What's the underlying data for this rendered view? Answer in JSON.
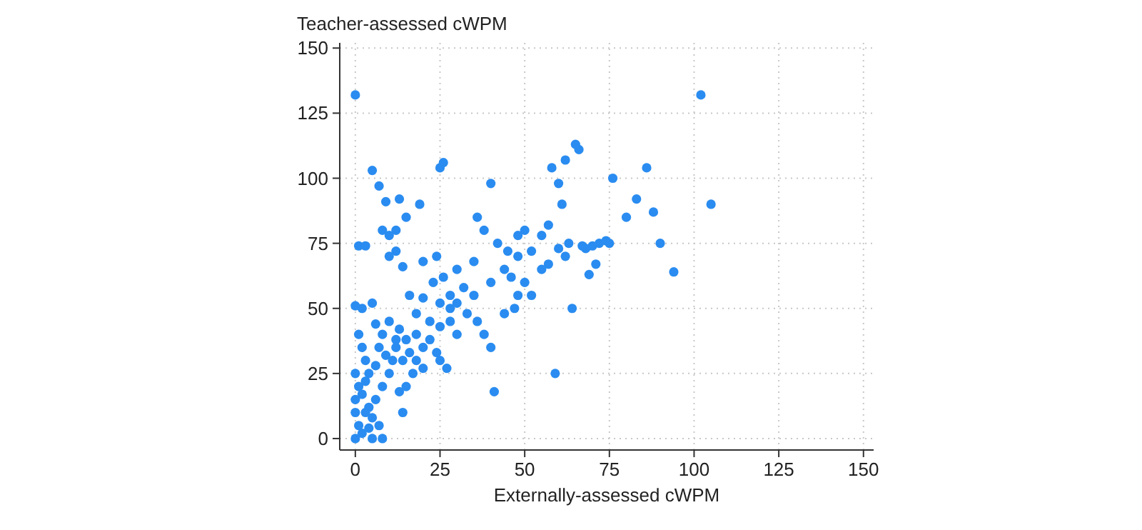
{
  "chart_data": {
    "type": "scatter",
    "xlabel": "Externally-assessed cWPM",
    "ylabel": "Teacher-assessed cWPM",
    "xlim": [
      -4.6,
      153
    ],
    "ylim": [
      -4.4,
      152
    ],
    "xticks": [
      0,
      25,
      50,
      75,
      100,
      125,
      150
    ],
    "yticks": [
      0,
      25,
      50,
      75,
      100,
      125,
      150
    ],
    "grid": true,
    "marker": "circle",
    "series": [
      {
        "color": "#2a8cf0",
        "x": [
          0,
          102,
          105,
          94,
          90,
          88,
          86,
          83,
          80,
          76,
          72,
          70,
          68,
          66,
          65,
          62,
          60,
          61,
          58,
          57,
          55,
          60,
          62,
          64,
          59,
          41,
          40,
          38,
          36,
          42,
          45,
          48,
          50,
          52,
          50,
          52,
          48,
          47,
          44,
          40,
          35,
          30,
          28,
          26,
          25,
          26,
          24,
          20,
          19,
          15,
          13,
          12,
          10,
          8,
          9,
          7,
          5,
          1,
          3,
          12,
          14,
          10,
          16,
          20,
          18,
          23,
          30,
          33,
          36,
          38,
          40,
          30,
          28,
          25,
          22,
          20,
          18,
          17,
          15,
          13,
          14,
          8,
          4,
          3,
          2,
          1,
          0,
          2,
          5,
          6,
          8,
          10,
          12,
          14,
          10,
          8,
          6,
          3,
          1,
          0,
          2,
          4,
          5,
          1,
          0,
          3,
          6,
          9,
          12,
          15,
          18,
          22,
          25,
          27,
          20,
          24,
          7,
          5,
          0,
          0,
          2,
          4,
          7,
          11,
          13,
          16,
          25,
          28,
          32,
          35,
          44,
          46,
          48,
          55,
          57,
          63,
          67,
          74,
          71,
          69,
          75
        ],
        "values": [
          132,
          132,
          90,
          64,
          75,
          87,
          104,
          92,
          85,
          100,
          75,
          74,
          73,
          111,
          113,
          107,
          98,
          90,
          104,
          82,
          78,
          73,
          70,
          50,
          25,
          18,
          98,
          80,
          85,
          75,
          72,
          70,
          80,
          72,
          60,
          55,
          55,
          50,
          65,
          60,
          68,
          65,
          55,
          62,
          104,
          106,
          70,
          68,
          90,
          85,
          92,
          80,
          78,
          80,
          91,
          97,
          103,
          74,
          74,
          72,
          66,
          70,
          55,
          54,
          48,
          60,
          52,
          48,
          45,
          40,
          35,
          40,
          45,
          43,
          38,
          35,
          30,
          25,
          20,
          18,
          10,
          0,
          12,
          30,
          35,
          40,
          51,
          50,
          52,
          44,
          40,
          45,
          38,
          30,
          25,
          20,
          15,
          10,
          5,
          0,
          2,
          4,
          8,
          20,
          25,
          22,
          28,
          32,
          35,
          38,
          40,
          45,
          30,
          27,
          27,
          33,
          5,
          0,
          10,
          15,
          17,
          25,
          35,
          30,
          42,
          33,
          52,
          50,
          58,
          55,
          48,
          62,
          78,
          65,
          67,
          75,
          74,
          76,
          67,
          63,
          75
        ]
      }
    ]
  }
}
